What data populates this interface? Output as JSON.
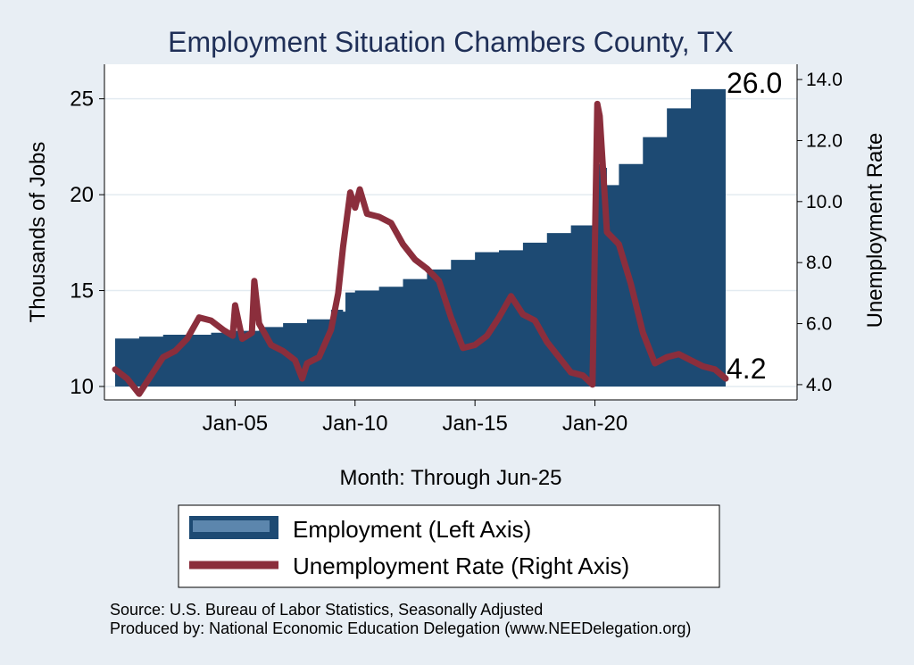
{
  "chart_data": {
    "type": "area+line",
    "title": "Employment Situation Chambers  County, TX",
    "xlabel": "Month: Through Jun-25",
    "ylabel_left": "Thousands of Jobs",
    "ylabel_right": "Unemployment Rate",
    "x_ticks": [
      "Jan-05",
      "Jan-10",
      "Jan-15",
      "Jan-20"
    ],
    "y_left_ticks": [
      "10",
      "15",
      "20",
      "25"
    ],
    "y_right_ticks": [
      "4.0",
      "6.0",
      "8.0",
      "10.0",
      "12.0",
      "14.0"
    ],
    "ylim_left": [
      9.3,
      26.8
    ],
    "ylim_right": [
      3.5,
      14.5
    ],
    "grid": true,
    "legend_position": "bottom",
    "end_labels": {
      "employment": "26.0",
      "unemployment": "4.2"
    },
    "series": [
      {
        "name": "Employment (Left Axis)",
        "axis": "left",
        "color": "#1d4a73",
        "points": [
          [
            2000.0,
            12.5
          ],
          [
            2001.0,
            12.6
          ],
          [
            2002.0,
            12.7
          ],
          [
            2003.0,
            12.7
          ],
          [
            2004.0,
            12.8
          ],
          [
            2005.0,
            12.9
          ],
          [
            2006.0,
            13.1
          ],
          [
            2007.0,
            13.3
          ],
          [
            2008.0,
            13.5
          ],
          [
            2009.0,
            14.0
          ],
          [
            2009.5,
            13.9
          ],
          [
            2009.6,
            14.9
          ],
          [
            2010.0,
            15.0
          ],
          [
            2011.0,
            15.2
          ],
          [
            2012.0,
            15.6
          ],
          [
            2013.0,
            16.1
          ],
          [
            2014.0,
            16.6
          ],
          [
            2015.0,
            17.0
          ],
          [
            2016.0,
            17.1
          ],
          [
            2017.0,
            17.5
          ],
          [
            2018.0,
            18.0
          ],
          [
            2019.0,
            18.4
          ],
          [
            2019.9,
            18.8
          ],
          [
            2020.0,
            21.6
          ],
          [
            2020.4,
            21.4
          ],
          [
            2020.5,
            20.5
          ],
          [
            2021.0,
            21.6
          ],
          [
            2022.0,
            23.0
          ],
          [
            2023.0,
            24.5
          ],
          [
            2024.0,
            25.5
          ],
          [
            2025.45,
            26.0
          ]
        ]
      },
      {
        "name": "Unemployment Rate (Right Axis)",
        "axis": "right",
        "color": "#8b2e3c",
        "points": [
          [
            2000.0,
            4.5
          ],
          [
            2000.5,
            4.2
          ],
          [
            2001.0,
            3.7
          ],
          [
            2001.5,
            4.3
          ],
          [
            2002.0,
            4.9
          ],
          [
            2002.5,
            5.1
          ],
          [
            2003.0,
            5.5
          ],
          [
            2003.5,
            6.2
          ],
          [
            2004.0,
            6.1
          ],
          [
            2004.5,
            5.8
          ],
          [
            2004.9,
            5.6
          ],
          [
            2005.0,
            6.6
          ],
          [
            2005.3,
            5.5
          ],
          [
            2005.7,
            5.7
          ],
          [
            2005.8,
            7.4
          ],
          [
            2006.0,
            6.0
          ],
          [
            2006.5,
            5.3
          ],
          [
            2007.0,
            5.1
          ],
          [
            2007.5,
            4.8
          ],
          [
            2007.8,
            4.2
          ],
          [
            2008.0,
            4.7
          ],
          [
            2008.5,
            4.9
          ],
          [
            2009.0,
            5.8
          ],
          [
            2009.3,
            7.0
          ],
          [
            2009.5,
            8.5
          ],
          [
            2009.8,
            10.3
          ],
          [
            2010.0,
            9.8
          ],
          [
            2010.2,
            10.4
          ],
          [
            2010.5,
            9.6
          ],
          [
            2011.0,
            9.5
          ],
          [
            2011.5,
            9.3
          ],
          [
            2012.0,
            8.6
          ],
          [
            2012.5,
            8.1
          ],
          [
            2013.0,
            7.8
          ],
          [
            2013.5,
            7.4
          ],
          [
            2014.0,
            6.2
          ],
          [
            2014.5,
            5.2
          ],
          [
            2015.0,
            5.3
          ],
          [
            2015.5,
            5.6
          ],
          [
            2016.0,
            6.2
          ],
          [
            2016.5,
            6.9
          ],
          [
            2017.0,
            6.3
          ],
          [
            2017.5,
            6.1
          ],
          [
            2018.0,
            5.4
          ],
          [
            2018.5,
            4.9
          ],
          [
            2019.0,
            4.4
          ],
          [
            2019.5,
            4.3
          ],
          [
            2019.9,
            4.0
          ],
          [
            2020.1,
            13.2
          ],
          [
            2020.2,
            12.8
          ],
          [
            2020.5,
            9.0
          ],
          [
            2021.0,
            8.6
          ],
          [
            2021.5,
            7.3
          ],
          [
            2022.0,
            5.7
          ],
          [
            2022.5,
            4.7
          ],
          [
            2023.0,
            4.9
          ],
          [
            2023.5,
            5.0
          ],
          [
            2024.0,
            4.8
          ],
          [
            2024.5,
            4.6
          ],
          [
            2025.0,
            4.5
          ],
          [
            2025.45,
            4.2
          ]
        ]
      }
    ],
    "source_lines": [
      "Source: U.S. Bureau of Labor Statistics, Seasonally Adjusted",
      "Produced by: National Economic Education Delegation (www.NEEDelegation.org)"
    ]
  }
}
